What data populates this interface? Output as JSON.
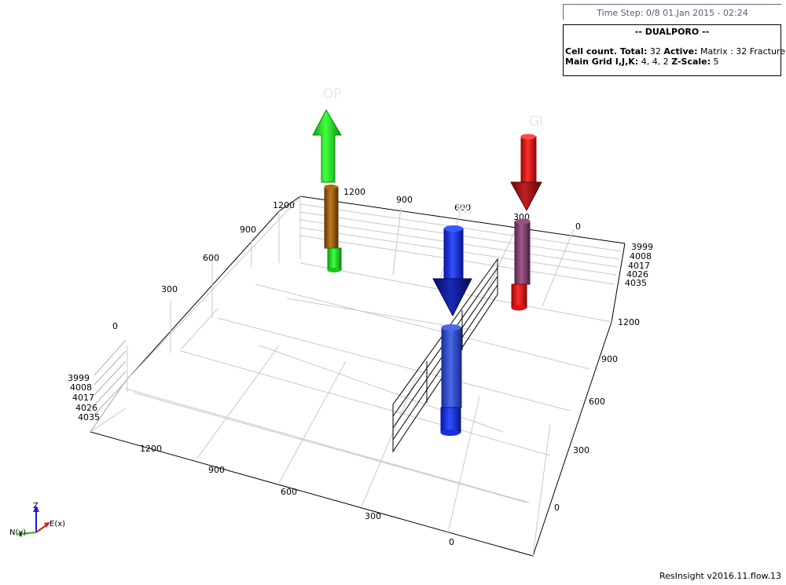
{
  "time_step": "Time Step: 0/8 01.Jan 2015 - 02:24",
  "info": {
    "title": "-- DUALPORO --",
    "cell_count_label": "Cell count. Total:",
    "cell_count_total": "32",
    "active_label": "Active:",
    "active_value": "Matrix : 32 Fracture : 32",
    "grid_label": "Main Grid I,J,K:",
    "grid_value": "4, 4, 2",
    "zscale_label": "Z-Scale:",
    "zscale_value": "5"
  },
  "wells": {
    "op": {
      "name": "OP",
      "arrow_color": "#1fe01f",
      "pipe_color": "#9c5a12",
      "lower_color": "#1fe01f"
    },
    "gi": {
      "name": "GI",
      "arrow_color": "#e01010",
      "head_color": "#a01010",
      "pipe_color": "#80406a",
      "lower_color": "#e81010"
    },
    "wi": {
      "name": "WI",
      "arrow_color": "#1a2ee0",
      "head_color": "#0c1a90",
      "pipe_color": "#2848c8",
      "lower_color": "#0a1ee8"
    }
  },
  "axes": {
    "top_back_ticks": [
      "1200",
      "900",
      "600",
      "300",
      "0"
    ],
    "left_ticks": [
      "1200",
      "900",
      "600",
      "300",
      "0"
    ],
    "right_ticks": [
      "1200",
      "900",
      "600",
      "300",
      "0"
    ],
    "front_ticks": [
      "1200",
      "900",
      "600",
      "300",
      "0"
    ],
    "depth_ticks_right": [
      "3999",
      "4008",
      "4017",
      "4026",
      "4035"
    ],
    "depth_ticks_left": [
      "3999",
      "4008",
      "4017",
      "4026",
      "4035"
    ]
  },
  "triad": {
    "z": "Z",
    "east": "E(x)",
    "north": "N(y)",
    "z_color": "#1a1ae0",
    "e_color": "#e01a1a",
    "n_color": "#1ab01a"
  },
  "version": "ResInsight v2016.11.flow.13"
}
